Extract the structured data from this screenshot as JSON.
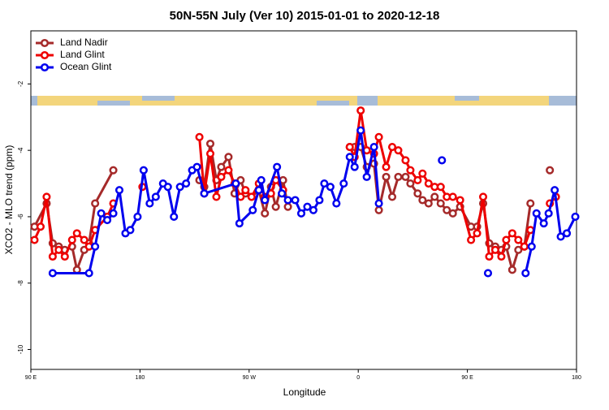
{
  "chart_data": {
    "type": "line",
    "title": "50N-55N July (Ver 10)   2015-01-01 to 2020-12-18",
    "x_label": "Longitude",
    "y_label": "XCO2 - MLO trend (ppm)",
    "xlim": [
      90,
      540
    ],
    "xticks": [
      {
        "value": 90,
        "label": "90 E"
      },
      {
        "value": 180,
        "label": "180"
      },
      {
        "value": 270,
        "label": "90 W"
      },
      {
        "value": 360,
        "label": "0"
      },
      {
        "value": 450,
        "label": "90 E"
      },
      {
        "value": 540,
        "label": "180"
      }
    ],
    "ylim": [
      -10.6,
      -0.4
    ],
    "yticks": [
      -2,
      -4,
      -6,
      -8,
      -10
    ],
    "legend": "top-left",
    "series": [
      {
        "name": "Land Nadir",
        "color": "#a52a2a",
        "x": [
          93,
          103,
          108,
          113,
          118,
          124,
          128,
          134,
          138,
          143,
          158,
          200,
          229,
          233,
          238,
          243,
          247,
          253,
          258,
          263,
          267,
          272,
          278,
          283,
          288,
          292,
          298,
          302,
          330,
          353,
          357,
          362,
          367,
          373,
          377,
          383,
          388,
          393,
          399,
          403,
          409,
          413,
          418,
          423,
          428,
          433,
          438,
          444,
          453,
          458,
          463,
          468,
          473,
          478,
          482,
          487,
          492,
          497,
          502,
          510,
          518
        ],
        "values": [
          -6.3,
          -5.6,
          -6.8,
          -6.9,
          -7.0,
          -6.9,
          -7.6,
          -7.0,
          -6.8,
          -5.6,
          -4.6,
          null,
          -4.9,
          -5.1,
          -3.8,
          -4.9,
          -4.5,
          -4.2,
          -5.3,
          -4.9,
          -5.3,
          -5.4,
          -5.2,
          -5.9,
          -5.1,
          -5.7,
          -4.9,
          -5.7,
          null,
          -3.9,
          -3.9,
          -3.9,
          -4.5,
          -4.4,
          -5.8,
          -4.8,
          -5.4,
          -4.8,
          -4.8,
          -5.0,
          -5.3,
          -5.5,
          -5.6,
          -5.4,
          -5.6,
          -5.8,
          -5.9,
          -5.7,
          -6.3,
          -6.3,
          -5.6,
          -6.8,
          -6.9,
          -7.0,
          -6.9,
          -7.6,
          -7.0,
          -6.9,
          -5.6,
          null,
          -4.6
        ]
      },
      {
        "name": "Land Glint",
        "color": "#ee0000",
        "x": [
          93,
          98,
          103,
          108,
          113,
          118,
          124,
          128,
          134,
          138,
          143,
          153,
          158,
          165,
          182,
          200,
          229,
          233,
          238,
          243,
          247,
          253,
          258,
          263,
          267,
          272,
          278,
          283,
          288,
          292,
          298,
          330,
          353,
          357,
          362,
          367,
          373,
          377,
          383,
          388,
          393,
          399,
          403,
          409,
          413,
          418,
          423,
          428,
          433,
          438,
          444,
          453,
          458,
          463,
          468,
          473,
          478,
          482,
          487,
          492,
          497,
          502,
          510,
          518,
          523
        ],
        "values": [
          -6.7,
          -6.3,
          -5.4,
          -7.2,
          -7.0,
          -7.2,
          -6.7,
          -6.5,
          -6.7,
          -6.9,
          -6.4,
          -6.0,
          -5.6,
          null,
          -5.1,
          null,
          -3.6,
          -5.3,
          -4.1,
          -5.4,
          -4.8,
          -4.6,
          -5.0,
          -5.4,
          -5.2,
          -5.4,
          -5.0,
          -5.4,
          -5.3,
          -4.9,
          -5.2,
          null,
          -3.9,
          -4.2,
          -2.8,
          -4.0,
          -4.1,
          -3.6,
          -4.5,
          -3.9,
          -4.0,
          -4.3,
          -4.6,
          -4.9,
          -4.7,
          -5.0,
          -5.1,
          -5.1,
          -5.4,
          -5.4,
          -5.5,
          -6.7,
          -6.5,
          -5.4,
          -7.2,
          -7.0,
          -7.2,
          -6.7,
          -6.5,
          -6.7,
          -6.9,
          -6.4,
          null,
          -5.6,
          -5.4
        ]
      },
      {
        "name": "Ocean Glint",
        "color": "#0000ee",
        "x": [
          108,
          138,
          143,
          148,
          153,
          158,
          163,
          168,
          172,
          178,
          183,
          188,
          193,
          199,
          203,
          208,
          213,
          218,
          223,
          227,
          233,
          259,
          262,
          273,
          278,
          280,
          283,
          293,
          297,
          302,
          308,
          313,
          318,
          323,
          328,
          332,
          337,
          342,
          348,
          353,
          357,
          362,
          367,
          373,
          377,
          420,
          429,
          470,
          467,
          490,
          498,
          503,
          507,
          513,
          517,
          522,
          527,
          532,
          539
        ],
        "values": [
          -7.7,
          -7.7,
          -6.9,
          -5.9,
          -6.1,
          -5.9,
          -5.2,
          -6.5,
          -6.4,
          -6.0,
          -4.6,
          -5.6,
          -5.4,
          -5.0,
          -5.1,
          -6.0,
          -5.1,
          -5.0,
          -4.6,
          -4.5,
          -5.3,
          -5.0,
          -6.2,
          -5.8,
          -5.2,
          -4.9,
          -5.5,
          -4.5,
          -5.3,
          -5.5,
          -5.5,
          -5.9,
          -5.7,
          -5.8,
          -5.5,
          -5.0,
          -5.1,
          -5.6,
          -5.0,
          -4.2,
          -4.5,
          -3.4,
          -4.8,
          -3.9,
          -5.6,
          null,
          -4.3,
          null,
          -7.7,
          null,
          -7.7,
          -6.9,
          -5.9,
          -6.2,
          -5.9,
          -5.2,
          -6.6,
          -6.5,
          -6.0
        ]
      }
    ]
  }
}
